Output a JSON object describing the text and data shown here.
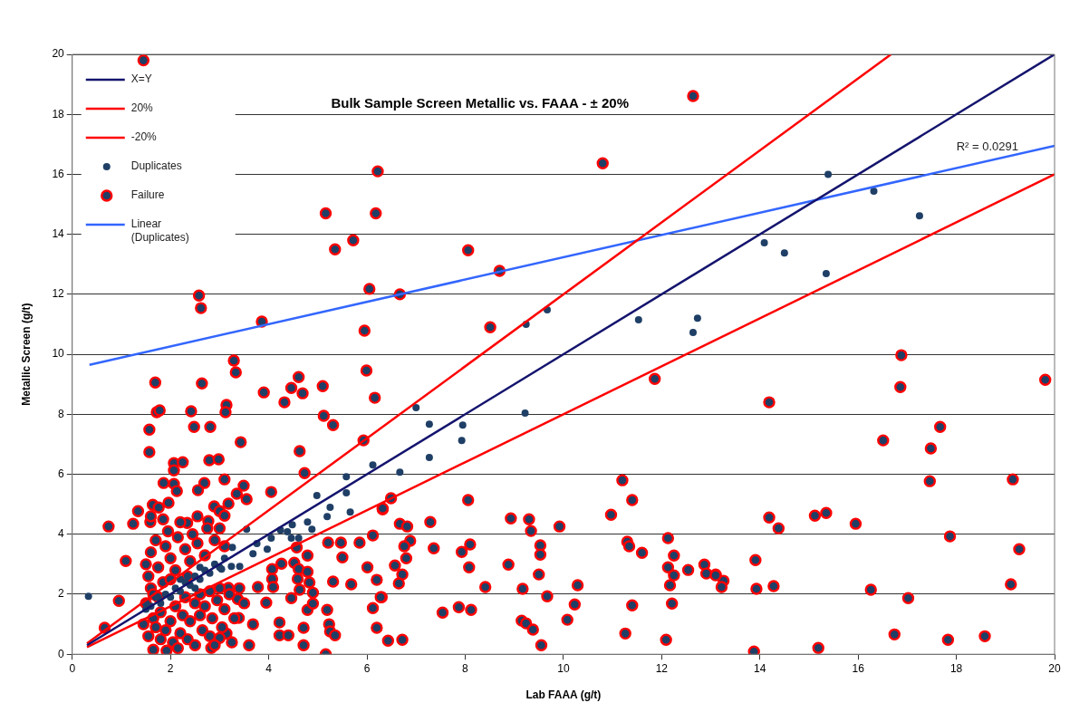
{
  "chart_data": {
    "type": "scatter",
    "title": "Bulk Sample Screen Metallic vs. FAAA - ± 20%",
    "xlabel": "Lab FAAA (g/t)",
    "ylabel": "Metallic Screen (g/t)",
    "xlim": [
      0,
      20
    ],
    "ylim": [
      0,
      20
    ],
    "xticks": [
      0,
      2,
      4,
      6,
      8,
      10,
      12,
      14,
      16,
      18,
      20
    ],
    "yticks": [
      0,
      2,
      4,
      6,
      8,
      10,
      12,
      14,
      16,
      18,
      20
    ],
    "grid": "y",
    "legend": "top left",
    "annotations": [
      "R² = 0.0291"
    ],
    "series": [
      {
        "name": "X=Y",
        "type": "line",
        "marker": "none",
        "color": "#14146e",
        "line_style": "solid",
        "x": [
          0.3,
          20
        ],
        "values": [
          0.3,
          20
        ]
      },
      {
        "name": "20%",
        "type": "line",
        "marker": "none",
        "color": "#ff0000",
        "line_style": "solid",
        "x": [
          0.3,
          16.67
        ],
        "values": [
          0.36,
          20
        ]
      },
      {
        "name": "-20%",
        "type": "line",
        "marker": "none",
        "color": "#ff0000",
        "line_style": "solid",
        "x": [
          0.3,
          20
        ],
        "values": [
          0.24,
          16
        ]
      },
      {
        "name": "Duplicates",
        "marker": "circle",
        "color": "#1f3f66",
        "x": [
          0.33,
          6.12,
          5.58,
          5.58,
          5.66,
          5.19,
          4.98,
          5.25,
          4.79,
          4.88,
          4.48,
          4.46,
          4.61,
          4.24,
          4.38,
          3.55,
          4.05,
          3.76,
          3.68,
          3.97,
          3.26,
          3.41,
          3.04,
          3.24,
          1.6,
          1.8,
          1.9,
          2.0,
          2.1,
          2.2,
          2.3,
          2.4,
          2.5,
          2.6,
          2.7,
          2.8,
          2.9,
          3.0,
          3.1,
          2.2,
          2.5,
          1.7,
          1.5,
          2.6,
          7.0,
          9.22,
          7.27,
          7.95,
          7.93,
          7.27,
          6.67,
          9.24,
          9.67,
          15.39,
          16.32,
          17.25,
          14.09,
          14.5,
          15.35,
          11.53,
          12.73,
          12.64
        ],
        "values": [
          1.93,
          6.31,
          5.92,
          5.38,
          4.74,
          4.59,
          5.29,
          4.9,
          4.41,
          4.17,
          4.32,
          3.87,
          3.87,
          4.14,
          4.08,
          4.17,
          3.87,
          3.69,
          3.35,
          3.5,
          3.56,
          2.93,
          2.84,
          2.93,
          1.6,
          1.7,
          2.0,
          1.9,
          2.2,
          2.1,
          2.4,
          2.3,
          2.6,
          2.5,
          2.8,
          2.7,
          3.0,
          2.9,
          3.2,
          2.5,
          2.2,
          1.9,
          1.5,
          2.9,
          8.22,
          8.04,
          7.67,
          7.64,
          7.13,
          6.56,
          6.07,
          11.0,
          11.48,
          16.0,
          15.44,
          14.62,
          13.72,
          13.38,
          12.69,
          11.15,
          11.2,
          10.73
        ]
      },
      {
        "name": "Failure",
        "marker": "circle",
        "color": "#ff0000",
        "x": [
          1.45,
          5.16,
          6.22,
          6.18,
          5.72,
          5.35,
          8.06,
          8.7,
          6.05,
          6.67,
          2.58,
          2.62,
          3.86,
          5.95,
          8.51,
          12.64,
          10.8,
          16.86,
          16.88,
          19.81,
          14.19,
          17.67,
          16.51,
          17.48,
          17.46,
          19.15,
          14.19,
          14.38,
          15.12,
          15.35,
          15.95,
          17.87,
          19.28,
          13.91,
          13.1,
          13.26,
          13.22,
          13.93,
          14.28,
          16.26,
          17.02,
          19.11,
          16.74,
          17.83,
          18.58,
          13.88,
          15.19,
          11.86,
          6.49,
          6.32,
          8.06,
          6.67,
          6.82,
          7.29,
          6.88,
          6.76,
          6.8,
          6.57,
          6.72,
          6.65,
          6.3,
          7.36,
          7.93,
          8.1,
          8.08,
          8.41,
          7.54,
          7.87,
          8.12,
          6.43,
          6.72,
          8.93,
          9.3,
          9.34,
          9.92,
          9.53,
          9.53,
          8.88,
          9.5,
          9.17,
          9.67,
          10.29,
          10.23,
          10.08,
          9.15,
          9.24,
          9.38,
          9.55,
          11.2,
          11.4,
          10.97,
          11.3,
          11.34,
          11.6,
          11.4,
          11.26,
          12.13,
          12.25,
          12.13,
          12.25,
          12.17,
          12.21,
          12.09,
          12.54,
          12.87,
          12.91,
          13.1,
          3.29,
          3.33,
          1.69,
          2.64,
          4.61,
          4.46,
          4.69,
          3.9,
          4.32,
          5.1,
          5.99,
          6.16,
          1.72,
          1.78,
          2.42,
          3.14,
          3.12,
          5.12,
          5.31,
          1.57,
          2.48,
          2.81,
          3.43,
          4.63,
          5.93,
          1.57,
          4.73,
          2.07,
          2.25,
          2.07,
          2.79,
          2.98,
          1.86,
          2.07,
          2.13,
          2.69,
          2.56,
          3.1,
          3.49,
          3.35,
          3.55,
          4.05,
          1.34,
          1.64,
          1.96,
          1.76,
          2.89,
          3.18,
          3.0,
          3.1,
          0.74,
          1.24,
          1.59,
          2.34,
          2.77,
          6.32,
          6.12,
          5.85,
          5.47,
          5.21,
          4.57,
          5.5,
          6.01,
          6.2,
          6.28,
          6.12,
          6.2,
          4.26,
          4.52,
          4.79,
          4.07,
          4.07,
          4.61,
          4.79,
          4.59,
          4.83,
          3.78,
          4.09,
          4.63,
          4.9,
          4.46,
          3.95,
          4.79,
          4.9,
          5.19,
          5.31,
          5.68,
          3.68,
          4.22,
          4.22,
          4.4,
          4.71,
          5.23,
          5.25,
          5.35,
          4.71,
          5.16,
          1.09,
          0.95,
          0.66,
          3.39,
          3.14,
          3.37,
          1.92,
          1.65,
          2.83,
          3.0,
          3.18,
          1.5,
          1.55,
          1.6,
          1.6,
          1.65,
          1.7,
          1.7,
          1.75,
          1.8,
          1.8,
          1.85,
          1.9,
          1.9,
          1.95,
          2.0,
          2.0,
          2.05,
          2.1,
          2.1,
          2.15,
          2.2,
          2.2,
          2.25,
          2.3,
          2.3,
          2.35,
          2.4,
          2.4,
          2.45,
          2.5,
          2.5,
          2.55,
          2.6,
          2.6,
          2.65,
          2.7,
          2.7,
          2.75,
          2.8,
          2.8,
          2.85,
          2.9,
          2.95,
          3.0,
          3.05,
          3.1,
          3.1,
          3.2,
          3.25,
          3.3,
          1.45,
          1.5,
          1.55,
          1.6,
          1.65,
          1.75,
          1.85,
          2.0,
          2.15,
          2.35,
          2.55,
          2.9,
          3.0,
          3.4,
          3.5,
          3.6
        ],
        "values": [
          19.8,
          14.7,
          16.1,
          14.7,
          13.8,
          13.5,
          13.47,
          12.78,
          12.18,
          12.0,
          11.96,
          11.54,
          11.09,
          10.79,
          10.9,
          18.61,
          16.37,
          8.91,
          9.97,
          9.15,
          8.4,
          7.58,
          7.13,
          6.86,
          5.77,
          5.83,
          4.56,
          4.2,
          4.62,
          4.71,
          4.35,
          3.93,
          3.5,
          3.14,
          2.66,
          2.45,
          2.24,
          2.18,
          2.27,
          2.15,
          1.87,
          2.33,
          0.66,
          0.48,
          0.6,
          0.09,
          0.21,
          9.18,
          5.2,
          4.83,
          5.14,
          4.35,
          4.26,
          4.41,
          3.78,
          3.6,
          3.2,
          2.96,
          2.66,
          2.36,
          1.9,
          3.53,
          3.41,
          3.66,
          2.9,
          2.24,
          1.39,
          1.57,
          1.48,
          0.45,
          0.48,
          4.53,
          4.5,
          4.11,
          4.26,
          3.63,
          3.32,
          2.99,
          2.66,
          2.18,
          1.93,
          2.3,
          1.66,
          1.15,
          1.12,
          1.03,
          0.82,
          0.3,
          5.8,
          5.14,
          4.65,
          3.75,
          3.6,
          3.38,
          1.63,
          0.69,
          3.87,
          3.29,
          2.9,
          2.63,
          2.3,
          1.69,
          0.48,
          2.81,
          2.99,
          2.69,
          2.63,
          9.79,
          9.4,
          9.06,
          9.03,
          9.24,
          8.88,
          8.7,
          8.73,
          8.4,
          8.94,
          9.46,
          8.55,
          8.07,
          8.13,
          8.1,
          8.31,
          8.07,
          7.95,
          7.64,
          7.49,
          7.58,
          7.58,
          7.07,
          6.77,
          7.13,
          6.74,
          6.04,
          6.37,
          6.4,
          6.13,
          6.47,
          6.5,
          5.71,
          5.68,
          5.44,
          5.71,
          5.47,
          5.83,
          5.62,
          5.35,
          5.17,
          5.41,
          4.77,
          4.98,
          5.05,
          4.89,
          4.93,
          5.02,
          4.77,
          4.62,
          4.26,
          4.35,
          4.41,
          4.38,
          4.44,
          4.86,
          3.96,
          3.72,
          3.72,
          3.72,
          3.56,
          3.23,
          2.9,
          2.48,
          1.9,
          1.54,
          0.88,
          3.02,
          3.05,
          3.29,
          2.84,
          2.51,
          2.84,
          2.75,
          2.51,
          2.39,
          2.24,
          2.24,
          2.15,
          2.05,
          1.87,
          1.72,
          1.48,
          1.69,
          1.48,
          2.42,
          2.33,
          1.0,
          1.06,
          0.63,
          0.63,
          0.88,
          1.0,
          0.76,
          0.63,
          0.3,
          0.0,
          3.11,
          1.78,
          0.88,
          1.21,
          0.69,
          1.84,
          0.12,
          0.15,
          0.21,
          0.54,
          2.21,
          3.0,
          2.6,
          3.4,
          2.2,
          1.2,
          0.9,
          3.8,
          2.9,
          0.5,
          1.4,
          2.4,
          3.6,
          0.8,
          4.1,
          1.1,
          3.2,
          0.4,
          2.8,
          1.6,
          3.9,
          0.7,
          4.4,
          1.3,
          3.5,
          1.9,
          0.5,
          3.1,
          1.1,
          4.0,
          1.7,
          0.3,
          3.7,
          1.3,
          2.0,
          0.8,
          3.3,
          1.6,
          4.2,
          2.1,
          0.6,
          1.2,
          3.8,
          1.8,
          2.2,
          0.9,
          3.6,
          1.5,
          2.0,
          0.4,
          1.2,
          1.0,
          1.7,
          0.6,
          4.6,
          2.0,
          1.9,
          4.5,
          2.5,
          0.2,
          2.6,
          4.6,
          0.3,
          4.2,
          2.2,
          1.7,
          0.3
        ]
      },
      {
        "name": "Linear (Duplicates)",
        "type": "line",
        "marker": "none",
        "color": "#3366ff",
        "line_style": "solid",
        "x": [
          0.35,
          20
        ],
        "values": [
          9.65,
          16.95
        ]
      }
    ]
  }
}
